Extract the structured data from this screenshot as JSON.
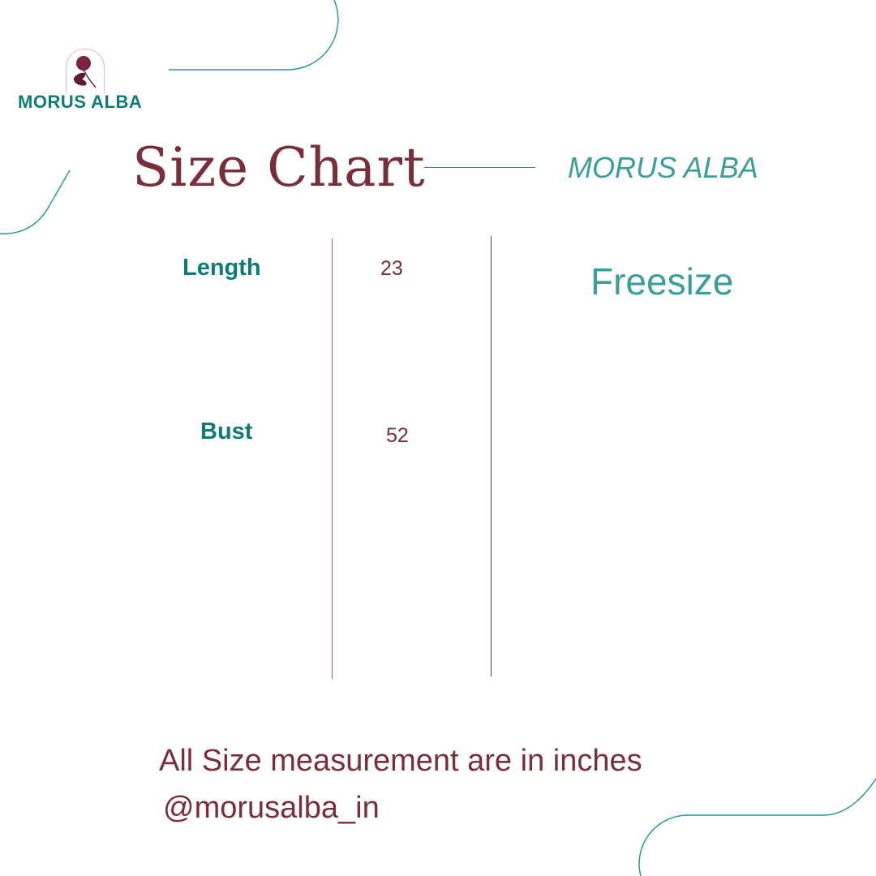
{
  "logo": {
    "text": "MORUS ALBA",
    "icon": "raspberry-flower-icon"
  },
  "title": "Size Chart",
  "brand": "MORUS ALBA",
  "measurements": [
    {
      "label": "Length",
      "value": "23"
    },
    {
      "label": "Bust",
      "value": "52"
    }
  ],
  "size": "Freesize",
  "footer": {
    "note": "All Size measurement are in inches",
    "handle": "@morusalba_in"
  },
  "colors": {
    "teal": "#0e7c76",
    "light_teal": "#3a9e9a",
    "maroon": "#7a2e3a"
  }
}
